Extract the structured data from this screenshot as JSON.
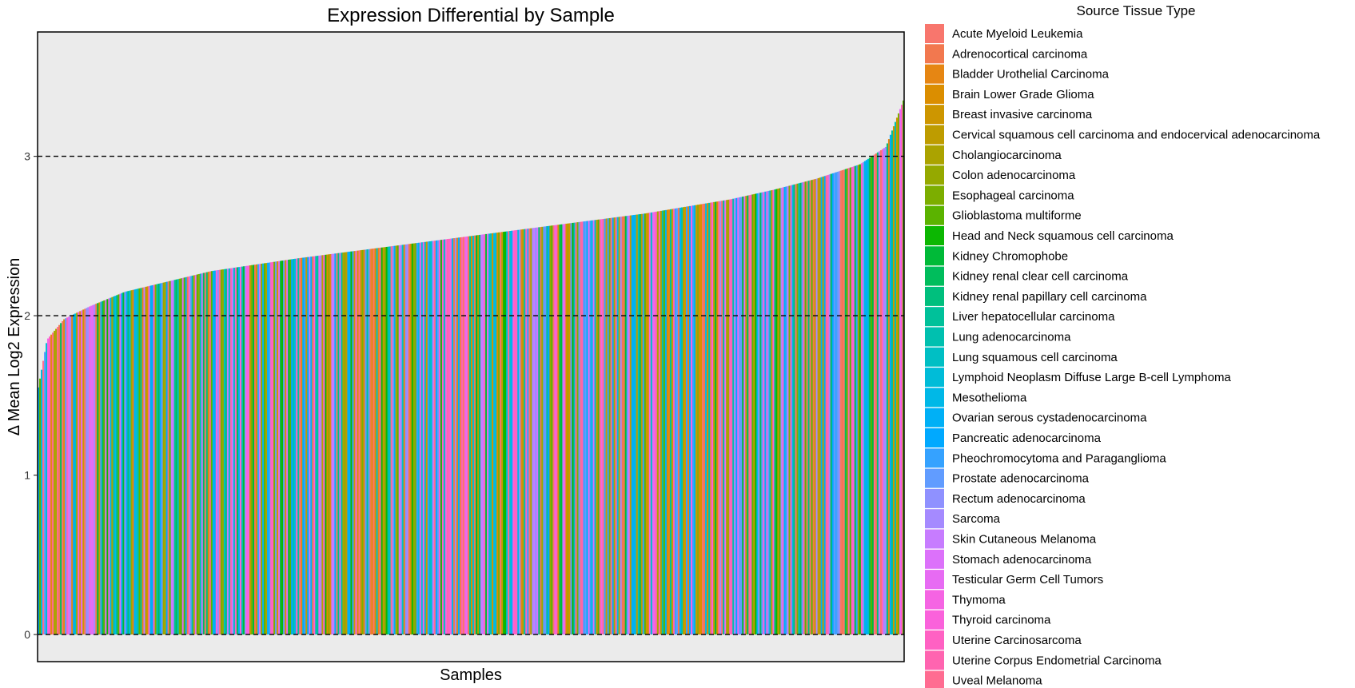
{
  "chart_data": {
    "type": "bar",
    "title": "Expression Differential by Sample",
    "xlabel": "Samples",
    "ylabel": "Δ Mean Log2 Expression",
    "ylim": [
      -0.17,
      3.78
    ],
    "yticks": [
      0,
      1,
      2,
      3
    ],
    "hlines": [
      0,
      2,
      3
    ],
    "grid": false,
    "sorted": "ascending",
    "sample_count_approx": 540,
    "value_profile": {
      "min": 1.55,
      "max": 3.35,
      "quantiles": [
        0,
        0.01,
        0.03,
        0.06,
        0.1,
        0.2,
        0.3,
        0.4,
        0.5,
        0.6,
        0.7,
        0.8,
        0.85,
        0.9,
        0.95,
        0.98,
        1
      ],
      "values": [
        1.55,
        1.85,
        1.98,
        2.06,
        2.15,
        2.28,
        2.36,
        2.43,
        2.5,
        2.57,
        2.64,
        2.73,
        2.79,
        2.86,
        2.95,
        3.06,
        3.35
      ]
    },
    "legend": {
      "title": "Source Tissue Type",
      "position": "right",
      "entries": [
        {
          "label": "Acute Myeloid Leukemia",
          "color": "#F8766D"
        },
        {
          "label": "Adrenocortical carcinoma",
          "color": "#F2784F"
        },
        {
          "label": "Bladder Urothelial Carcinoma",
          "color": "#E68613"
        },
        {
          "label": "Brain Lower Grade Glioma",
          "color": "#DB8E00"
        },
        {
          "label": "Breast invasive carcinoma",
          "color": "#CD9600"
        },
        {
          "label": "Cervical squamous cell carcinoma and endocervical adenocarcinoma",
          "color": "#BE9C00"
        },
        {
          "label": "Cholangiocarcinoma",
          "color": "#ABA300"
        },
        {
          "label": "Colon adenocarcinoma",
          "color": "#95A900"
        },
        {
          "label": "Esophageal carcinoma",
          "color": "#7CAE00"
        },
        {
          "label": "Glioblastoma multiforme",
          "color": "#5BB300"
        },
        {
          "label": "Head and Neck squamous cell carcinoma",
          "color": "#0CB702"
        },
        {
          "label": "Kidney Chromophobe",
          "color": "#00BA38"
        },
        {
          "label": "Kidney renal clear cell carcinoma",
          "color": "#00BD5C"
        },
        {
          "label": "Kidney renal papillary cell carcinoma",
          "color": "#00BF7D"
        },
        {
          "label": "Liver hepatocellular carcinoma",
          "color": "#00C19A"
        },
        {
          "label": "Lung adenocarcinoma",
          "color": "#00C0AF"
        },
        {
          "label": "Lung squamous cell carcinoma",
          "color": "#00BFC4"
        },
        {
          "label": "Lymphoid Neoplasm Diffuse Large B-cell Lymphoma",
          "color": "#00BCD8"
        },
        {
          "label": "Mesothelioma",
          "color": "#00B8E7"
        },
        {
          "label": "Ovarian serous cystadenocarcinoma",
          "color": "#00B0F6"
        },
        {
          "label": "Pancreatic adenocarcinoma",
          "color": "#00A9FF"
        },
        {
          "label": "Pheochromocytoma and Paraganglioma",
          "color": "#35A2FF"
        },
        {
          "label": "Prostate adenocarcinoma",
          "color": "#619CFF"
        },
        {
          "label": "Rectum adenocarcinoma",
          "color": "#8F91FF"
        },
        {
          "label": "Sarcoma",
          "color": "#A58AFF"
        },
        {
          "label": "Skin Cutaneous Melanoma",
          "color": "#C77CFF"
        },
        {
          "label": "Stomach adenocarcinoma",
          "color": "#DC71FA"
        },
        {
          "label": "Testicular Germ Cell Tumors",
          "color": "#E76BF3"
        },
        {
          "label": "Thymoma",
          "color": "#F564E3"
        },
        {
          "label": "Thyroid carcinoma",
          "color": "#FA62DB"
        },
        {
          "label": "Uterine Carcinosarcoma",
          "color": "#FF61C3"
        },
        {
          "label": "Uterine Corpus Endometrial Carcinoma",
          "color": "#FF64B0"
        },
        {
          "label": "Uveal Melanoma",
          "color": "#FF6C91"
        }
      ]
    },
    "colors": {
      "panel_background": "#EBEBEB",
      "axis_line": "#000000",
      "reference_line": "#000000",
      "text": "#000000",
      "tick_text": "#333333"
    }
  }
}
